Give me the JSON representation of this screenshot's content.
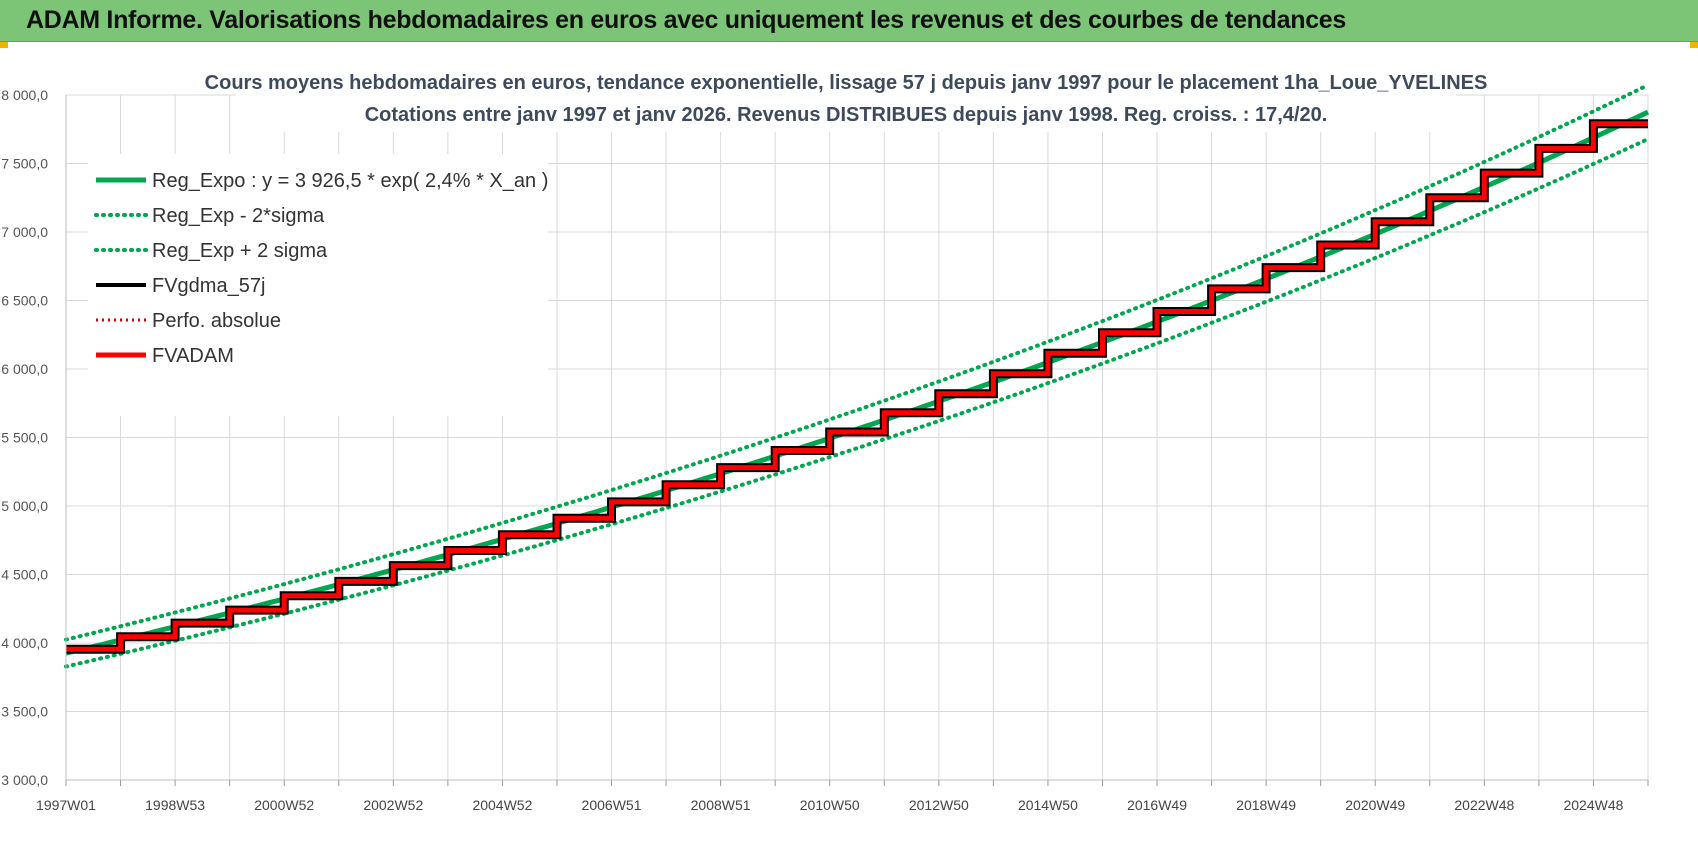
{
  "header": {
    "title": "ADAM Informe. Valorisations hebdomadaires en euros avec uniquement les revenus et des courbes de tendances"
  },
  "colors": {
    "header_bg": "#7cc576",
    "trend": "#00a650",
    "fv_gdma": "#000000",
    "fvadam": "#ff0000",
    "perfo": "#d00000",
    "grid": "#d9d9d9"
  },
  "chart_data": {
    "type": "line",
    "title_lines": [
      "Cours moyens hebdomadaires en euros, tendance exponentielle, lissage 57 j depuis janv 1997 pour le placement 1ha_Loue_YVELINES",
      "Cotations entre janv 1997 et janv 2026. Revenus DISTRIBUES depuis janv 1998. Reg. croiss. : 17,4/20."
    ],
    "ylim": [
      3000,
      8000
    ],
    "y_ticks": [
      "3 000,0",
      "3 500,0",
      "4 000,0",
      "4 500,0",
      "5 000,0",
      "5 500,0",
      "6 000,0",
      "6 500,0",
      "7 000,0",
      "7 500,0",
      "8 000,0"
    ],
    "y_tick_values": [
      3000,
      3500,
      4000,
      4500,
      5000,
      5500,
      6000,
      6500,
      7000,
      7500,
      8000
    ],
    "x_range_years": [
      1997.0,
      2026.0
    ],
    "x_tick_labels": [
      "1997W01",
      "1998W53",
      "2000W52",
      "2002W52",
      "2004W52",
      "2006W51",
      "2008W51",
      "2010W50",
      "2012W50",
      "2014W50",
      "2016W49",
      "2018W49",
      "2020W49",
      "2022W48",
      "2024W48"
    ],
    "x_tick_years": [
      1997.0,
      1999.0,
      2001.0,
      2003.0,
      2005.0,
      2007.0,
      2009.0,
      2011.0,
      2013.0,
      2015.0,
      2017.0,
      2019.0,
      2021.0,
      2023.0,
      2025.0
    ],
    "grid": true,
    "legend_position": "top-left",
    "legend": [
      {
        "label": "Reg_Expo : y = 3 926,5 * exp( 2,4% *  X_an )",
        "style": "solid-green"
      },
      {
        "label": "Reg_Exp - 2*sigma",
        "style": "dotted-green"
      },
      {
        "label": "Reg_Exp + 2 sigma",
        "style": "dotted-green"
      },
      {
        "label": "FVgdma_57j",
        "style": "solid-black"
      },
      {
        "label": "Perfo. absolue",
        "style": "dotted-red"
      },
      {
        "label": "FVADAM",
        "style": "solid-red"
      }
    ],
    "regression": {
      "a": 3926.5,
      "rate": 0.024,
      "sigma_ratio": 0.0125
    },
    "fvadam_steps": [
      {
        "year": 1997,
        "value": 3955
      },
      {
        "year": 1998,
        "value": 4045
      },
      {
        "year": 1999,
        "value": 4145
      },
      {
        "year": 2000,
        "value": 4240
      },
      {
        "year": 2001,
        "value": 4345
      },
      {
        "year": 2002,
        "value": 4450
      },
      {
        "year": 2003,
        "value": 4565
      },
      {
        "year": 2004,
        "value": 4675
      },
      {
        "year": 2005,
        "value": 4790
      },
      {
        "year": 2006,
        "value": 4910
      },
      {
        "year": 2007,
        "value": 5030
      },
      {
        "year": 2008,
        "value": 5155
      },
      {
        "year": 2009,
        "value": 5280
      },
      {
        "year": 2010,
        "value": 5405
      },
      {
        "year": 2011,
        "value": 5540
      },
      {
        "year": 2012,
        "value": 5680
      },
      {
        "year": 2013,
        "value": 5820
      },
      {
        "year": 2014,
        "value": 5965
      },
      {
        "year": 2015,
        "value": 6115
      },
      {
        "year": 2016,
        "value": 6265
      },
      {
        "year": 2017,
        "value": 6420
      },
      {
        "year": 2018,
        "value": 6585
      },
      {
        "year": 2019,
        "value": 6740
      },
      {
        "year": 2020,
        "value": 6905
      },
      {
        "year": 2021,
        "value": 7075
      },
      {
        "year": 2022,
        "value": 7250
      },
      {
        "year": 2023,
        "value": 7430
      },
      {
        "year": 2024,
        "value": 7610
      },
      {
        "year": 2025,
        "value": 7790
      }
    ]
  }
}
